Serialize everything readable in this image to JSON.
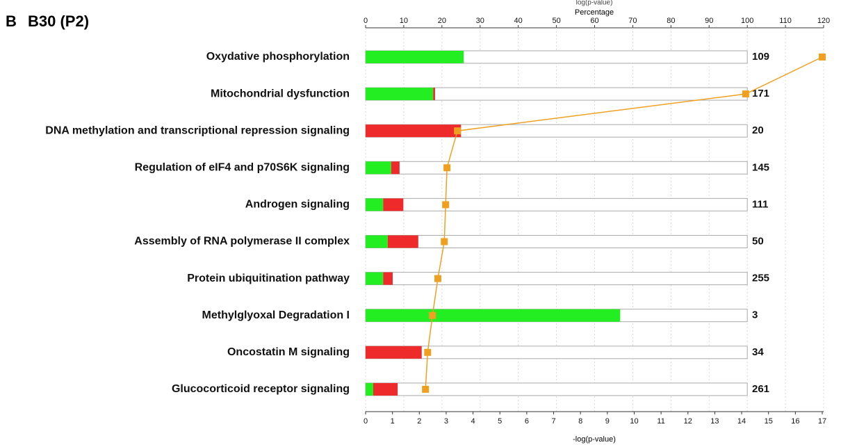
{
  "chart_data": {
    "type": "bar",
    "orientation": "horizontal",
    "panel_label": "B",
    "title": "B30 (P2)",
    "top_label": "log(p-value)",
    "x_label": "Percentage",
    "x2_label": "-log(p-value)",
    "categories": [
      "Oxydative phosphorylation",
      "Mitochondrial dysfunction",
      "DNA methylation and transcriptional repression signaling",
      "Regulation of eIF4 and p70S6K signaling",
      "Androgen signaling",
      "Assembly of RNA polymerase II complex",
      "Protein ubiquitination pathway",
      "Methylglyoxal Degradation I",
      "Oncostatin M signaling",
      "Glucocorticoid receptor signaling"
    ],
    "series": [
      {
        "color": "#22ee22",
        "values": [
          25.7,
          17.7,
          0,
          6.7,
          4.6,
          5.8,
          4.6,
          66.7,
          0,
          2.0
        ]
      },
      {
        "color": "#ee2a2a",
        "values": [
          0,
          0.5,
          25.0,
          2.2,
          5.3,
          8.0,
          2.5,
          0,
          14.7,
          6.4
        ]
      },
      {
        "type": "line",
        "axis": "x2",
        "color": "#f0a020",
        "values": [
          17.0,
          14.15,
          3.42,
          3.03,
          2.98,
          2.93,
          2.69,
          2.49,
          2.31,
          2.23
        ]
      }
    ],
    "totals": [
      109,
      171,
      20,
      145,
      111,
      50,
      255,
      3,
      34,
      261
    ],
    "frame": 100,
    "xlim": [
      0,
      120
    ],
    "xticks": [
      0,
      10,
      20,
      30,
      40,
      50,
      60,
      70,
      80,
      90,
      100,
      110,
      120
    ],
    "x2lim": [
      0,
      17
    ],
    "x2ticks": [
      0,
      1,
      2,
      3,
      4,
      5,
      6,
      7,
      8,
      9,
      10,
      11,
      12,
      13,
      14,
      15,
      16,
      17
    ],
    "grid": true
  }
}
